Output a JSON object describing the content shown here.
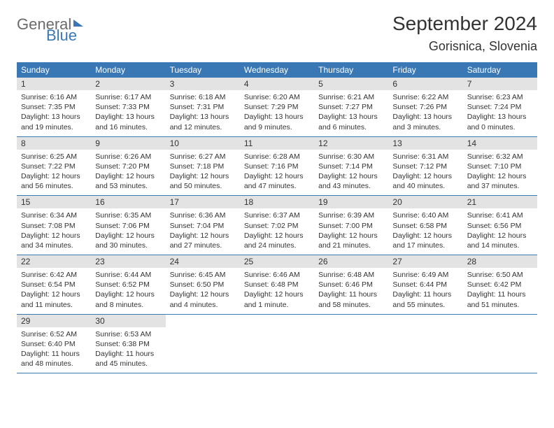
{
  "branding": {
    "word1": "General",
    "word2": "Blue"
  },
  "title": {
    "month": "September 2024",
    "location": "Gorisnica, Slovenia"
  },
  "colors": {
    "header_bg": "#3a78b5",
    "header_text": "#ffffff",
    "daynum_bg": "#e3e3e3",
    "body_text": "#333333",
    "page_bg": "#ffffff",
    "logo_gray": "#6b6b6b",
    "logo_blue": "#3a78b5"
  },
  "dayNames": [
    "Sunday",
    "Monday",
    "Tuesday",
    "Wednesday",
    "Thursday",
    "Friday",
    "Saturday"
  ],
  "weeks": [
    [
      {
        "n": "1",
        "sr": "Sunrise: 6:16 AM",
        "ss": "Sunset: 7:35 PM",
        "d1": "Daylight: 13 hours",
        "d2": "and 19 minutes."
      },
      {
        "n": "2",
        "sr": "Sunrise: 6:17 AM",
        "ss": "Sunset: 7:33 PM",
        "d1": "Daylight: 13 hours",
        "d2": "and 16 minutes."
      },
      {
        "n": "3",
        "sr": "Sunrise: 6:18 AM",
        "ss": "Sunset: 7:31 PM",
        "d1": "Daylight: 13 hours",
        "d2": "and 12 minutes."
      },
      {
        "n": "4",
        "sr": "Sunrise: 6:20 AM",
        "ss": "Sunset: 7:29 PM",
        "d1": "Daylight: 13 hours",
        "d2": "and 9 minutes."
      },
      {
        "n": "5",
        "sr": "Sunrise: 6:21 AM",
        "ss": "Sunset: 7:27 PM",
        "d1": "Daylight: 13 hours",
        "d2": "and 6 minutes."
      },
      {
        "n": "6",
        "sr": "Sunrise: 6:22 AM",
        "ss": "Sunset: 7:26 PM",
        "d1": "Daylight: 13 hours",
        "d2": "and 3 minutes."
      },
      {
        "n": "7",
        "sr": "Sunrise: 6:23 AM",
        "ss": "Sunset: 7:24 PM",
        "d1": "Daylight: 13 hours",
        "d2": "and 0 minutes."
      }
    ],
    [
      {
        "n": "8",
        "sr": "Sunrise: 6:25 AM",
        "ss": "Sunset: 7:22 PM",
        "d1": "Daylight: 12 hours",
        "d2": "and 56 minutes."
      },
      {
        "n": "9",
        "sr": "Sunrise: 6:26 AM",
        "ss": "Sunset: 7:20 PM",
        "d1": "Daylight: 12 hours",
        "d2": "and 53 minutes."
      },
      {
        "n": "10",
        "sr": "Sunrise: 6:27 AM",
        "ss": "Sunset: 7:18 PM",
        "d1": "Daylight: 12 hours",
        "d2": "and 50 minutes."
      },
      {
        "n": "11",
        "sr": "Sunrise: 6:28 AM",
        "ss": "Sunset: 7:16 PM",
        "d1": "Daylight: 12 hours",
        "d2": "and 47 minutes."
      },
      {
        "n": "12",
        "sr": "Sunrise: 6:30 AM",
        "ss": "Sunset: 7:14 PM",
        "d1": "Daylight: 12 hours",
        "d2": "and 43 minutes."
      },
      {
        "n": "13",
        "sr": "Sunrise: 6:31 AM",
        "ss": "Sunset: 7:12 PM",
        "d1": "Daylight: 12 hours",
        "d2": "and 40 minutes."
      },
      {
        "n": "14",
        "sr": "Sunrise: 6:32 AM",
        "ss": "Sunset: 7:10 PM",
        "d1": "Daylight: 12 hours",
        "d2": "and 37 minutes."
      }
    ],
    [
      {
        "n": "15",
        "sr": "Sunrise: 6:34 AM",
        "ss": "Sunset: 7:08 PM",
        "d1": "Daylight: 12 hours",
        "d2": "and 34 minutes."
      },
      {
        "n": "16",
        "sr": "Sunrise: 6:35 AM",
        "ss": "Sunset: 7:06 PM",
        "d1": "Daylight: 12 hours",
        "d2": "and 30 minutes."
      },
      {
        "n": "17",
        "sr": "Sunrise: 6:36 AM",
        "ss": "Sunset: 7:04 PM",
        "d1": "Daylight: 12 hours",
        "d2": "and 27 minutes."
      },
      {
        "n": "18",
        "sr": "Sunrise: 6:37 AM",
        "ss": "Sunset: 7:02 PM",
        "d1": "Daylight: 12 hours",
        "d2": "and 24 minutes."
      },
      {
        "n": "19",
        "sr": "Sunrise: 6:39 AM",
        "ss": "Sunset: 7:00 PM",
        "d1": "Daylight: 12 hours",
        "d2": "and 21 minutes."
      },
      {
        "n": "20",
        "sr": "Sunrise: 6:40 AM",
        "ss": "Sunset: 6:58 PM",
        "d1": "Daylight: 12 hours",
        "d2": "and 17 minutes."
      },
      {
        "n": "21",
        "sr": "Sunrise: 6:41 AM",
        "ss": "Sunset: 6:56 PM",
        "d1": "Daylight: 12 hours",
        "d2": "and 14 minutes."
      }
    ],
    [
      {
        "n": "22",
        "sr": "Sunrise: 6:42 AM",
        "ss": "Sunset: 6:54 PM",
        "d1": "Daylight: 12 hours",
        "d2": "and 11 minutes."
      },
      {
        "n": "23",
        "sr": "Sunrise: 6:44 AM",
        "ss": "Sunset: 6:52 PM",
        "d1": "Daylight: 12 hours",
        "d2": "and 8 minutes."
      },
      {
        "n": "24",
        "sr": "Sunrise: 6:45 AM",
        "ss": "Sunset: 6:50 PM",
        "d1": "Daylight: 12 hours",
        "d2": "and 4 minutes."
      },
      {
        "n": "25",
        "sr": "Sunrise: 6:46 AM",
        "ss": "Sunset: 6:48 PM",
        "d1": "Daylight: 12 hours",
        "d2": "and 1 minute."
      },
      {
        "n": "26",
        "sr": "Sunrise: 6:48 AM",
        "ss": "Sunset: 6:46 PM",
        "d1": "Daylight: 11 hours",
        "d2": "and 58 minutes."
      },
      {
        "n": "27",
        "sr": "Sunrise: 6:49 AM",
        "ss": "Sunset: 6:44 PM",
        "d1": "Daylight: 11 hours",
        "d2": "and 55 minutes."
      },
      {
        "n": "28",
        "sr": "Sunrise: 6:50 AM",
        "ss": "Sunset: 6:42 PM",
        "d1": "Daylight: 11 hours",
        "d2": "and 51 minutes."
      }
    ],
    [
      {
        "n": "29",
        "sr": "Sunrise: 6:52 AM",
        "ss": "Sunset: 6:40 PM",
        "d1": "Daylight: 11 hours",
        "d2": "and 48 minutes."
      },
      {
        "n": "30",
        "sr": "Sunrise: 6:53 AM",
        "ss": "Sunset: 6:38 PM",
        "d1": "Daylight: 11 hours",
        "d2": "and 45 minutes."
      },
      null,
      null,
      null,
      null,
      null
    ]
  ]
}
